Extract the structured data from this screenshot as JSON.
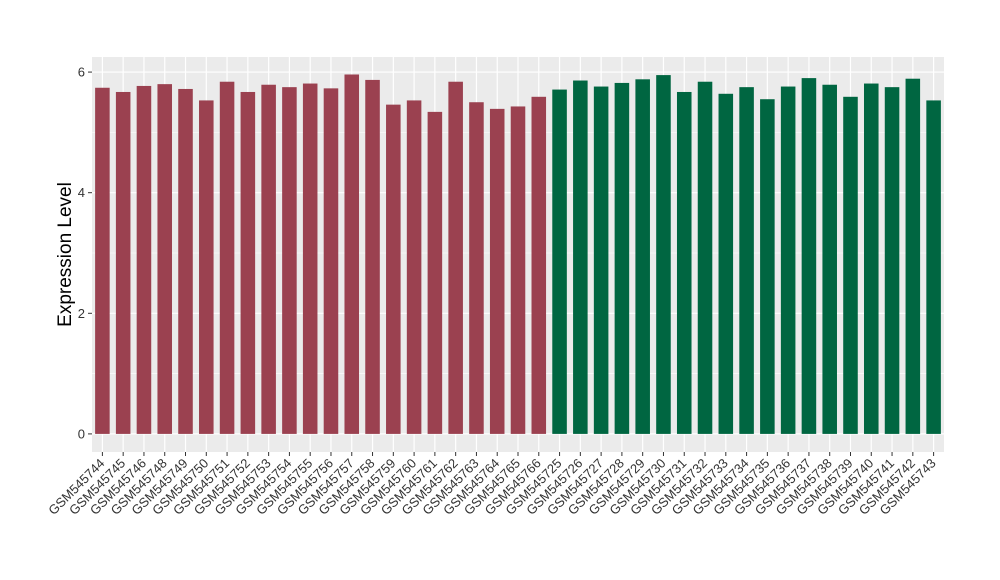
{
  "chart_data": {
    "type": "bar",
    "title": "",
    "xlabel": "",
    "ylabel": "Expression Level",
    "ylim": [
      -0.3,
      6.25
    ],
    "yticks": [
      0,
      2,
      4,
      6
    ],
    "grid": true,
    "legend": "none",
    "colors": {
      "group1": "#9b4150",
      "group2": "#006641",
      "panel_bg": "#ebebeb",
      "grid": "#ffffff"
    },
    "categories": [
      "GSM545744",
      "GSM545745",
      "GSM545746",
      "GSM545748",
      "GSM545749",
      "GSM545750",
      "GSM545751",
      "GSM545752",
      "GSM545753",
      "GSM545754",
      "GSM545755",
      "GSM545756",
      "GSM545757",
      "GSM545758",
      "GSM545759",
      "GSM545760",
      "GSM545761",
      "GSM545762",
      "GSM545763",
      "GSM545764",
      "GSM545765",
      "GSM545766",
      "GSM545725",
      "GSM545726",
      "GSM545727",
      "GSM545728",
      "GSM545729",
      "GSM545730",
      "GSM545731",
      "GSM545732",
      "GSM545733",
      "GSM545734",
      "GSM545735",
      "GSM545736",
      "GSM545737",
      "GSM545738",
      "GSM545739",
      "GSM545740",
      "GSM545741",
      "GSM545742",
      "GSM545743"
    ],
    "values": [
      5.74,
      5.67,
      5.77,
      5.8,
      5.72,
      5.53,
      5.84,
      5.67,
      5.79,
      5.75,
      5.81,
      5.73,
      5.96,
      5.87,
      5.46,
      5.53,
      5.34,
      5.84,
      5.5,
      5.39,
      5.43,
      5.59,
      5.71,
      5.86,
      5.76,
      5.82,
      5.88,
      5.95,
      5.67,
      5.84,
      5.64,
      5.75,
      5.55,
      5.76,
      5.9,
      5.79,
      5.59,
      5.81,
      5.75,
      5.89,
      5.53
    ],
    "groups": [
      "group1",
      "group1",
      "group1",
      "group1",
      "group1",
      "group1",
      "group1",
      "group1",
      "group1",
      "group1",
      "group1",
      "group1",
      "group1",
      "group1",
      "group1",
      "group1",
      "group1",
      "group1",
      "group1",
      "group1",
      "group1",
      "group1",
      "group2",
      "group2",
      "group2",
      "group2",
      "group2",
      "group2",
      "group2",
      "group2",
      "group2",
      "group2",
      "group2",
      "group2",
      "group2",
      "group2",
      "group2",
      "group2",
      "group2",
      "group2",
      "group2"
    ]
  }
}
